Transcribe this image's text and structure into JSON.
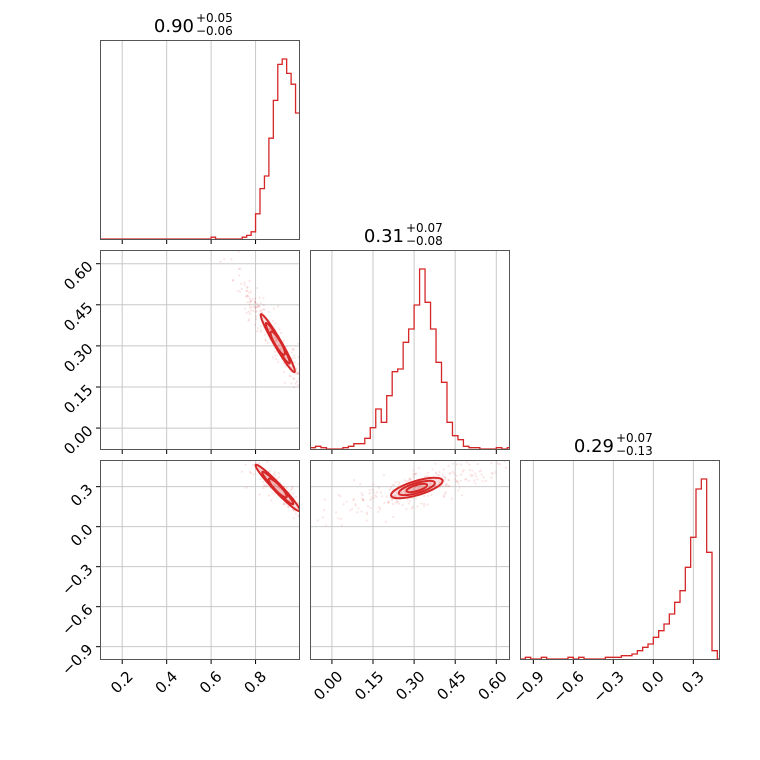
{
  "chart_data": {
    "type": "corner",
    "accent_color": "#d62728",
    "grid": true,
    "parameters": [
      {
        "title_value": "0.90",
        "title_plus": "+0.05",
        "title_minus": "−0.06",
        "range": [
          0.1,
          1.0
        ],
        "ticks": [
          0.2,
          0.4,
          0.6,
          0.8
        ],
        "tick_labels": [
          "0.2",
          "0.4",
          "0.6",
          "0.8"
        ]
      },
      {
        "title_value": "0.31",
        "title_plus": "+0.07",
        "title_minus": "−0.08",
        "range": [
          -0.08,
          0.65
        ],
        "ticks": [
          0.0,
          0.15,
          0.3,
          0.45,
          0.6
        ],
        "tick_labels": [
          "0.00",
          "0.15",
          "0.30",
          "0.45",
          "0.60"
        ]
      },
      {
        "title_value": "0.29",
        "title_plus": "+0.07",
        "title_minus": "−0.13",
        "range": [
          -1.0,
          0.5
        ],
        "ticks": [
          -0.9,
          -0.6,
          -0.3,
          0.0,
          0.3
        ],
        "tick_labels": [
          "−0.9",
          "−0.6",
          "−0.3",
          "0.0",
          "0.3"
        ]
      }
    ],
    "histograms": [
      {
        "bin_edges": [
          0.1,
          0.12,
          0.14,
          0.16,
          0.18,
          0.2,
          0.22,
          0.24,
          0.26,
          0.28,
          0.3,
          0.32,
          0.34,
          0.36,
          0.38,
          0.4,
          0.42,
          0.44,
          0.46,
          0.48,
          0.5,
          0.52,
          0.54,
          0.56,
          0.58,
          0.6,
          0.62,
          0.64,
          0.66,
          0.68,
          0.7,
          0.72,
          0.74,
          0.76,
          0.78,
          0.8,
          0.82,
          0.84,
          0.86,
          0.88,
          0.9,
          0.92,
          0.94,
          0.96,
          0.98,
          1.0
        ],
        "counts": [
          0,
          0,
          0,
          0,
          0,
          0,
          0,
          0,
          0,
          0,
          0,
          0,
          0,
          0,
          0,
          0,
          0,
          0,
          0,
          0,
          0,
          0,
          0,
          0,
          0,
          1,
          0,
          0,
          0,
          0,
          0,
          0,
          1,
          2,
          4,
          14,
          28,
          35,
          56,
          77,
          97,
          100,
          92,
          86,
          70
        ]
      },
      {
        "bin_edges": [
          -0.08,
          -0.06,
          -0.04,
          -0.02,
          0.0,
          0.02,
          0.04,
          0.06,
          0.08,
          0.1,
          0.12,
          0.14,
          0.16,
          0.18,
          0.2,
          0.22,
          0.24,
          0.26,
          0.28,
          0.3,
          0.32,
          0.34,
          0.36,
          0.38,
          0.4,
          0.42,
          0.44,
          0.46,
          0.48,
          0.5,
          0.52,
          0.54,
          0.56,
          0.58,
          0.6,
          0.62,
          0.64,
          0.66
        ],
        "counts": [
          1,
          2,
          1,
          0,
          0,
          0,
          1,
          2,
          4,
          4,
          8,
          16,
          30,
          20,
          40,
          58,
          60,
          80,
          90,
          108,
          135,
          110,
          90,
          65,
          50,
          20,
          10,
          7,
          2,
          1,
          1,
          0,
          0,
          0,
          1,
          0,
          1
        ]
      },
      {
        "bin_edges": [
          -1.0,
          -0.96,
          -0.92,
          -0.88,
          -0.84,
          -0.8,
          -0.76,
          -0.72,
          -0.68,
          -0.64,
          -0.6,
          -0.56,
          -0.52,
          -0.48,
          -0.44,
          -0.4,
          -0.36,
          -0.32,
          -0.28,
          -0.24,
          -0.2,
          -0.16,
          -0.12,
          -0.08,
          -0.04,
          0.0,
          0.04,
          0.08,
          0.12,
          0.16,
          0.2,
          0.24,
          0.28,
          0.32,
          0.36,
          0.4,
          0.44,
          0.48,
          0.5
        ],
        "counts": [
          0,
          1,
          0,
          0,
          1,
          0,
          0,
          0,
          0,
          1,
          0,
          1,
          0,
          0,
          0,
          0,
          1,
          1,
          1,
          2,
          2,
          3,
          5,
          7,
          9,
          13,
          17,
          21,
          27,
          34,
          41,
          55,
          73,
          102,
          108,
          64,
          5,
          0
        ]
      }
    ],
    "contour_levels": [
      0.39,
      0.86,
      0.99
    ]
  }
}
